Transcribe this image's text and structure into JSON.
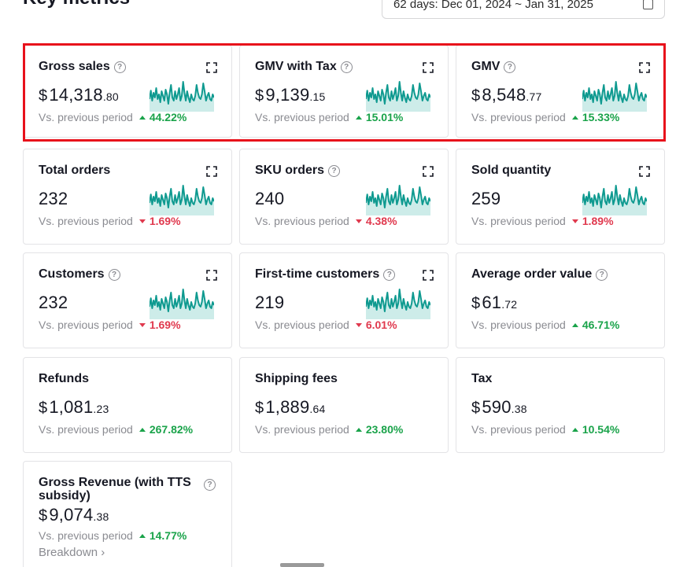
{
  "header": {
    "title": "Key metrics",
    "date_range": "62 days:  Dec 01, 2024  ~  Jan 31, 2025"
  },
  "common": {
    "compare_label": "Vs. previous period",
    "breakdown_label": "Breakdown ›"
  },
  "colors": {
    "spark": "#0f9a90",
    "spark_fill": "#cdece9",
    "up": "#1aa34a",
    "down": "#e0394e",
    "highlight": "#e8111b"
  },
  "cards": {
    "gross_sales": {
      "title": "Gross sales",
      "cur": "$",
      "int": "14,318",
      "cents": ".80",
      "change": "44.22%",
      "dir": "up"
    },
    "gmv_tax": {
      "title": "GMV with Tax",
      "cur": "$",
      "int": "9,139",
      "cents": ".15",
      "change": "15.01%",
      "dir": "up"
    },
    "gmv": {
      "title": "GMV",
      "cur": "$",
      "int": "8,548",
      "cents": ".77",
      "change": "15.33%",
      "dir": "up"
    },
    "total_orders": {
      "title": "Total orders",
      "value": "232",
      "change": "1.69%",
      "dir": "down"
    },
    "sku_orders": {
      "title": "SKU orders",
      "value": "240",
      "change": "4.38%",
      "dir": "down"
    },
    "sold_quantity": {
      "title": "Sold quantity",
      "value": "259",
      "change": "1.89%",
      "dir": "down"
    },
    "customers": {
      "title": "Customers",
      "value": "232",
      "change": "1.69%",
      "dir": "down"
    },
    "first_time": {
      "title": "First-time customers",
      "value": "219",
      "change": "6.01%",
      "dir": "down"
    },
    "aov": {
      "title": "Average order value",
      "cur": "$",
      "int": "61",
      "cents": ".72",
      "change": "46.71%",
      "dir": "up"
    },
    "refunds": {
      "title": "Refunds",
      "cur": "$",
      "int": "1,081",
      "cents": ".23",
      "change": "267.82%",
      "dir": "up"
    },
    "shipping": {
      "title": "Shipping fees",
      "cur": "$",
      "int": "1,889",
      "cents": ".64",
      "change": "23.80%",
      "dir": "up"
    },
    "tax": {
      "title": "Tax",
      "cur": "$",
      "int": "590",
      "cents": ".38",
      "change": "10.54%",
      "dir": "up"
    },
    "gross_revenue": {
      "title": "Gross Revenue (with TTS subsidy)",
      "cur": "$",
      "int": "9,074",
      "cents": ".38",
      "change": "14.77%",
      "dir": "up"
    }
  },
  "sparkline": [
    0.35,
    0.62,
    0.3,
    0.55,
    0.4,
    0.7,
    0.35,
    0.5,
    0.25,
    0.6,
    0.45,
    0.3,
    0.65,
    0.5,
    0.2,
    0.55,
    0.8,
    0.4,
    0.3,
    0.6,
    0.35,
    0.5,
    0.7,
    0.3,
    0.45,
    0.9,
    0.55,
    0.3,
    0.6,
    0.4,
    0.25,
    0.5,
    0.35,
    0.3,
    0.45,
    0.8,
    0.55,
    0.4,
    0.35,
    0.5,
    0.85,
    0.6,
    0.3,
    0.45,
    0.55,
    0.35,
    0.3,
    0.5,
    0.4
  ]
}
